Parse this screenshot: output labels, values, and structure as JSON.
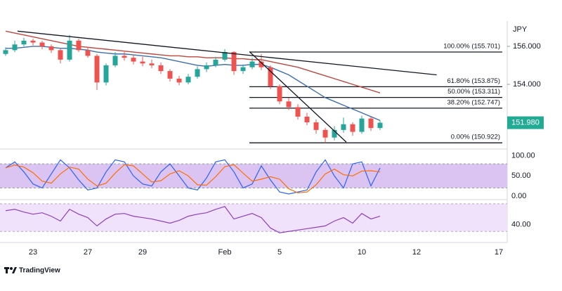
{
  "brand": "TradingView",
  "chart_data": {
    "type": "candlestick",
    "currency": "JPY",
    "categories": [
      null,
      null,
      null,
      "23",
      null,
      null,
      null,
      null,
      null,
      "27",
      null,
      null,
      null,
      null,
      null,
      "29",
      null,
      null,
      null,
      null,
      null,
      null,
      null,
      null,
      "Feb",
      null,
      null,
      null,
      null,
      null,
      "5",
      null,
      null,
      null,
      null,
      null,
      null,
      null,
      null,
      "10",
      null,
      null,
      null,
      null,
      null,
      "12",
      null,
      null,
      null,
      null,
      null,
      null,
      null,
      null,
      "17"
    ],
    "candles": [
      [
        155.6,
        155.95,
        155.5,
        155.8
      ],
      [
        155.8,
        156.3,
        155.7,
        156.1
      ],
      [
        156.1,
        156.45,
        156.0,
        156.3
      ],
      [
        156.3,
        156.4,
        156.05,
        156.2
      ],
      [
        156.2,
        156.3,
        155.85,
        156.0
      ],
      [
        156.0,
        156.1,
        155.65,
        155.8
      ],
      [
        155.8,
        155.9,
        155.1,
        155.3
      ],
      [
        155.3,
        156.6,
        155.2,
        156.3
      ],
      [
        156.3,
        156.4,
        155.7,
        155.8
      ],
      [
        155.8,
        155.95,
        155.4,
        155.5
      ],
      [
        155.5,
        155.6,
        153.7,
        154.1
      ],
      [
        154.1,
        155.1,
        153.95,
        155.0
      ],
      [
        155.0,
        155.7,
        154.9,
        155.5
      ],
      [
        155.5,
        155.7,
        155.25,
        155.4
      ],
      [
        155.4,
        155.55,
        155.05,
        155.2
      ],
      [
        155.2,
        155.45,
        154.95,
        155.1
      ],
      [
        155.1,
        155.3,
        154.85,
        155.0
      ],
      [
        155.0,
        155.15,
        154.55,
        154.7
      ],
      [
        154.7,
        154.8,
        154.15,
        154.3
      ],
      [
        154.3,
        154.45,
        153.95,
        154.1
      ],
      [
        154.1,
        154.55,
        154.0,
        154.4
      ],
      [
        154.4,
        154.95,
        154.3,
        154.8
      ],
      [
        154.8,
        155.15,
        154.65,
        155.0
      ],
      [
        155.0,
        155.45,
        154.9,
        155.3
      ],
      [
        155.3,
        155.85,
        155.2,
        155.7
      ],
      [
        155.7,
        155.75,
        154.5,
        154.7
      ],
      [
        154.7,
        155.05,
        154.55,
        154.9
      ],
      [
        154.9,
        155.4,
        154.8,
        155.2
      ],
      [
        155.2,
        155.6,
        154.75,
        154.9
      ],
      [
        154.9,
        155.0,
        153.75,
        153.9
      ],
      [
        153.9,
        154.0,
        152.95,
        153.1
      ],
      [
        153.1,
        153.3,
        152.65,
        152.8
      ],
      [
        152.8,
        152.95,
        152.15,
        152.3
      ],
      [
        152.3,
        152.5,
        151.85,
        152.0
      ],
      [
        152.0,
        152.15,
        151.4,
        151.6
      ],
      [
        151.6,
        151.7,
        150.922,
        151.2
      ],
      [
        151.2,
        151.8,
        151.05,
        151.6
      ],
      [
        151.6,
        152.25,
        151.45,
        151.9
      ],
      [
        151.9,
        152.0,
        151.3,
        151.5
      ],
      [
        151.5,
        152.35,
        151.4,
        152.2
      ],
      [
        152.2,
        152.3,
        151.55,
        151.7
      ],
      [
        151.7,
        152.1,
        151.6,
        151.98
      ],
      null,
      null,
      null,
      null,
      null,
      null,
      null,
      null,
      null,
      null,
      null,
      null,
      null
    ],
    "up_color": "#26a69a",
    "down_color": "#ef5350",
    "ylim": [
      150.67,
      157.33
    ],
    "yticks": [
      {
        "value": 156,
        "label": "156.000"
      },
      {
        "value": 154,
        "label": "154.000"
      }
    ],
    "last_price": {
      "value": 151.98,
      "label": "151.980",
      "color": "#22ab94"
    },
    "moving_averages": [
      {
        "color": "#3d6fb0",
        "values": [
          155.9,
          155.9,
          155.95,
          156.0,
          156.0,
          155.95,
          155.9,
          155.9,
          155.85,
          155.8,
          155.7,
          155.65,
          155.6,
          155.6,
          155.55,
          155.5,
          155.45,
          155.4,
          155.3,
          155.2,
          155.1,
          155.0,
          154.95,
          155.0,
          155.05,
          155.0,
          155.0,
          155.05,
          155.05,
          154.9,
          154.7,
          154.5,
          154.2,
          153.9,
          153.6,
          153.3,
          153.1,
          152.9,
          152.7,
          152.5,
          152.3,
          152.1,
          null,
          null,
          null,
          null,
          null,
          null,
          null,
          null,
          null,
          null,
          null,
          null,
          null
        ]
      },
      {
        "color": "#c0463c",
        "values": [
          156.8,
          156.7,
          156.6,
          156.5,
          156.4,
          156.3,
          156.2,
          156.1,
          156.0,
          155.95,
          155.9,
          155.85,
          155.8,
          155.75,
          155.7,
          155.65,
          155.6,
          155.55,
          155.5,
          155.5,
          155.45,
          155.45,
          155.4,
          155.4,
          155.4,
          155.35,
          155.35,
          155.3,
          155.3,
          155.2,
          155.1,
          155.0,
          154.9,
          154.75,
          154.6,
          154.45,
          154.3,
          154.15,
          154.0,
          153.85,
          153.7,
          153.55,
          null,
          null,
          null,
          null,
          null,
          null,
          null,
          null,
          null,
          null,
          null,
          null,
          null
        ]
      }
    ],
    "trendlines": [
      [
        [
          1.3,
          156.8
        ],
        [
          47.2,
          154.5
        ]
      ],
      [
        [
          26.7,
          155.72
        ],
        [
          37.3,
          150.96
        ]
      ]
    ],
    "fib_levels": [
      {
        "value": 155.701,
        "label": "100.00% (155.701)"
      },
      {
        "value": 153.875,
        "label": "61.80% (153.875)"
      },
      {
        "value": 153.311,
        "label": "50.00% (153.311)"
      },
      {
        "value": 152.747,
        "label": "38.20% (152.747)"
      },
      {
        "value": 150.922,
        "label": "0.00% (150.922)"
      }
    ],
    "stochastic": {
      "ylim": [
        -9,
        117
      ],
      "yticks": [
        {
          "value": 100,
          "label": "100.00"
        },
        {
          "value": 50,
          "label": "50.00"
        },
        {
          "value": 0,
          "label": "0.00"
        }
      ],
      "bands": [
        20,
        80
      ],
      "band_color": "#dcc4f2",
      "lines": [
        {
          "color": "#2962ff",
          "values": [
            70,
            85,
            60,
            30,
            20,
            55,
            90,
            70,
            40,
            15,
            20,
            60,
            90,
            85,
            50,
            30,
            25,
            60,
            80,
            50,
            20,
            15,
            45,
            85,
            90,
            60,
            20,
            30,
            75,
            40,
            10,
            5,
            10,
            15,
            60,
            90,
            50,
            20,
            80,
            85,
            25,
            70,
            null,
            null,
            null,
            null,
            null,
            null,
            null,
            null,
            null,
            null,
            null,
            null,
            null
          ]
        },
        {
          "color": "#ff6d00",
          "values": [
            70,
            77,
            72,
            58,
            37,
            32,
            55,
            72,
            67,
            42,
            25,
            32,
            57,
            78,
            75,
            55,
            35,
            38,
            55,
            63,
            50,
            28,
            27,
            48,
            73,
            78,
            57,
            37,
            42,
            48,
            42,
            18,
            8,
            10,
            28,
            55,
            67,
            53,
            50,
            62,
            63,
            60,
            null,
            null,
            null,
            null,
            null,
            null,
            null,
            null,
            null,
            null,
            null,
            null,
            null
          ]
        }
      ]
    },
    "rsi": {
      "ylim": [
        14,
        76
      ],
      "yticks": [
        {
          "value": 40,
          "label": "40.00"
        }
      ],
      "bands": [
        30,
        70
      ],
      "band_color": "#efe2fa",
      "color": "#8e3fbf",
      "values": [
        60,
        62,
        58,
        55,
        57,
        52,
        45,
        62,
        55,
        50,
        38,
        48,
        55,
        56,
        52,
        50,
        48,
        45,
        42,
        46,
        52,
        55,
        57,
        62,
        66,
        48,
        52,
        56,
        50,
        35,
        28,
        30,
        32,
        34,
        36,
        38,
        45,
        50,
        42,
        56,
        48,
        52,
        null,
        null,
        null,
        null,
        null,
        null,
        null,
        null,
        null,
        null,
        null,
        null,
        null
      ]
    }
  }
}
